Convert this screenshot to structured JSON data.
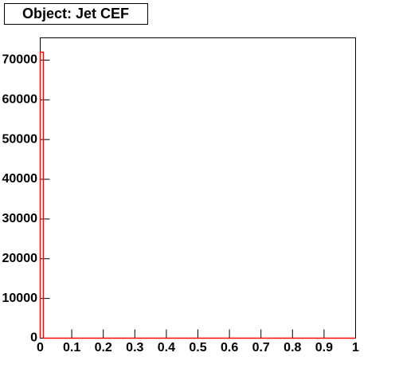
{
  "chart_data": {
    "type": "histogram",
    "title": "Object: Jet CEF",
    "bins": [
      0,
      0.01,
      0.02,
      0.03,
      0.04,
      0.05,
      0.06,
      0.07,
      0.08,
      0.09,
      0.1,
      0.11,
      0.12,
      0.13,
      0.14,
      0.15,
      0.16,
      0.17,
      0.18,
      0.19,
      0.2,
      0.21,
      0.22,
      0.23,
      0.24,
      0.25,
      0.26,
      0.27,
      0.28,
      0.29,
      0.3,
      0.31,
      0.32,
      0.33,
      0.34,
      0.35,
      0.36,
      0.37,
      0.38,
      0.39,
      0.4,
      0.41,
      0.42,
      0.43,
      0.44,
      0.45,
      0.46,
      0.47,
      0.48,
      0.49,
      0.5,
      0.51,
      0.52,
      0.53,
      0.54,
      0.55,
      0.56,
      0.57,
      0.58,
      0.59,
      0.6,
      0.61,
      0.62,
      0.63,
      0.64,
      0.65,
      0.66,
      0.67,
      0.68,
      0.69,
      0.7,
      0.71,
      0.72,
      0.73,
      0.74,
      0.75,
      0.76,
      0.77,
      0.78,
      0.79,
      0.8,
      0.81,
      0.82,
      0.83,
      0.84,
      0.85,
      0.86,
      0.87,
      0.88,
      0.89,
      0.9,
      0.91,
      0.92,
      0.93,
      0.94,
      0.95,
      0.96,
      0.97,
      0.98,
      0.99,
      1
    ],
    "values": [
      72000,
      0,
      0,
      0,
      0,
      0,
      0,
      0,
      0,
      0,
      0,
      0,
      0,
      0,
      0,
      0,
      0,
      0,
      0,
      0,
      0,
      0,
      0,
      0,
      0,
      0,
      0,
      0,
      0,
      0,
      0,
      0,
      0,
      0,
      0,
      0,
      0,
      0,
      0,
      0,
      0,
      0,
      0,
      0,
      0,
      0,
      0,
      0,
      0,
      0,
      0,
      0,
      0,
      0,
      0,
      0,
      0,
      0,
      0,
      0,
      0,
      0,
      0,
      0,
      0,
      0,
      0,
      0,
      0,
      0,
      0,
      0,
      0,
      0,
      0,
      0,
      0,
      0,
      0,
      0,
      0,
      0,
      0,
      0,
      0,
      0,
      0,
      0,
      0,
      0,
      0,
      0,
      0,
      0,
      0,
      0,
      0,
      0,
      0,
      0
    ],
    "color": "#ff0000",
    "xlim": [
      0,
      1
    ],
    "xticks": [
      0,
      0.1,
      0.2,
      0.3,
      0.4,
      0.5,
      0.6,
      0.7,
      0.8,
      0.9,
      1
    ],
    "ylim": [
      0,
      75600
    ],
    "yticks": [
      0,
      10000,
      20000,
      30000,
      40000,
      50000,
      60000,
      70000
    ]
  }
}
